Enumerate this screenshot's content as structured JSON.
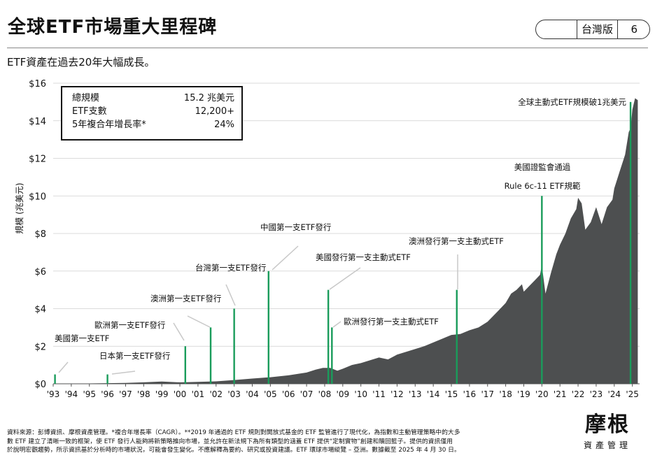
{
  "header": {
    "title": "全球ETF市場重大里程碑",
    "region_label": "台灣版",
    "page_number": "6"
  },
  "subtitle": "ETF資產在過去20年大幅成長。",
  "stats_box": {
    "rows": [
      {
        "label": "總規模",
        "value": "15.2 兆美元"
      },
      {
        "label": "ETF支數",
        "value": "12,200+"
      },
      {
        "label": "5年複合年增長率*",
        "value": "24%"
      }
    ]
  },
  "chart_data": {
    "type": "area",
    "ylabel": "規模 (兆美元)",
    "ylim": [
      0,
      16
    ],
    "xlim": [
      1993,
      2025.4
    ],
    "y_ticks": [
      0,
      2,
      4,
      6,
      8,
      10,
      12,
      14,
      16
    ],
    "y_tick_labels": [
      "$0",
      "$2",
      "$4",
      "$6",
      "$8",
      "$10",
      "$12",
      "$14",
      "$16"
    ],
    "x_ticks": [
      1993,
      1994,
      1995,
      1996,
      1997,
      1998,
      1999,
      2000,
      2001,
      2002,
      2003,
      2004,
      2005,
      2006,
      2007,
      2008,
      2009,
      2010,
      2011,
      2012,
      2013,
      2014,
      2015,
      2016,
      2017,
      2018,
      2019,
      2020,
      2021,
      2022,
      2023,
      2024,
      2025
    ],
    "x_tick_labels": [
      "'93",
      "'94",
      "'95",
      "'96",
      "'97",
      "'98",
      "'99",
      "'00",
      "'01",
      "'02",
      "'03",
      "'04",
      "'05",
      "'06",
      "'07",
      "'08",
      "'09",
      "'10",
      "'11",
      "'12",
      "'13",
      "'14",
      "'15",
      "'16",
      "'17",
      "'18",
      "'19",
      "'20",
      "'21",
      "'22",
      "'23",
      "'24",
      "'25"
    ],
    "grid": "horizontal",
    "colors": {
      "area": "#4d4f50",
      "milestone": "#1a9c5b",
      "grid": "#cfcfcf"
    },
    "series": [
      {
        "x": [
          1993,
          1995,
          1997,
          1998,
          1999,
          2000,
          2000.5,
          2001,
          2002,
          2003,
          2004,
          2005,
          2006,
          2007,
          2007.5,
          2007.9,
          2008.3,
          2008.7,
          2009,
          2009.5,
          2010,
          2010.5,
          2011,
          2011.5,
          2012,
          2012.5,
          2013,
          2013.5,
          2014,
          2014.5,
          2015,
          2015.5,
          2016,
          2016.5,
          2017,
          2017.3,
          2017.6,
          2018,
          2018.3,
          2018.6,
          2018.9,
          2019,
          2019.3,
          2019.6,
          2019.9,
          2020,
          2020.2,
          2020.5,
          2020.8,
          2021,
          2021.3,
          2021.6,
          2021.9,
          2022,
          2022.2,
          2022.4,
          2022.7,
          2023,
          2023.3,
          2023.6,
          2023.9,
          2024,
          2024.3,
          2024.6,
          2024.8,
          2024.9,
          2025,
          2025.15,
          2025.3
        ],
        "y": [
          0.01,
          0.02,
          0.05,
          0.08,
          0.12,
          0.08,
          0.09,
          0.1,
          0.13,
          0.2,
          0.28,
          0.35,
          0.45,
          0.6,
          0.75,
          0.85,
          0.85,
          0.7,
          0.8,
          1.0,
          1.1,
          1.25,
          1.4,
          1.3,
          1.55,
          1.7,
          1.85,
          2.0,
          2.2,
          2.4,
          2.6,
          2.65,
          2.85,
          3.0,
          3.3,
          3.6,
          3.9,
          4.3,
          4.8,
          5.0,
          5.3,
          4.9,
          5.2,
          5.5,
          5.8,
          6.3,
          4.8,
          5.9,
          6.9,
          7.4,
          8.0,
          8.8,
          9.3,
          9.9,
          9.6,
          8.2,
          8.6,
          9.4,
          8.5,
          9.4,
          9.8,
          10.4,
          11.3,
          12.2,
          13.4,
          13.6,
          14.6,
          15.2,
          15.1
        ]
      }
    ],
    "annotations": [
      {
        "text": "美國第一支ETF",
        "x": 1993.1,
        "value": 0.5
      },
      {
        "text": "日本第一支ETF發行",
        "x": 1996.0,
        "value": 0.5
      },
      {
        "text": "歐洲第一支ETF發行",
        "x": 2000.3,
        "value": 2.0
      },
      {
        "text": "澳洲第一支ETF發行",
        "x": 2001.7,
        "value": 3.0
      },
      {
        "text": "台灣第一支ETF發行",
        "x": 2003.0,
        "value": 4.0
      },
      {
        "text": "中國第一支ETF發行",
        "x": 2004.9,
        "value": 6.0
      },
      {
        "text": "美國發行第一支主動式ETF",
        "x": 2008.2,
        "value": 5.0
      },
      {
        "text": "歐洲發行第一支主動式ETF",
        "x": 2008.4,
        "value": 3.0
      },
      {
        "text": "澳洲發行第一支主動式ETF",
        "x": 2015.3,
        "value": 5.0
      },
      {
        "text": "美國證監會通過",
        "text2": "Rule 6c-11 ETF規範",
        "x": 2020.0,
        "value": 10.0
      },
      {
        "text": "全球主動式ETF規模破1兆美元",
        "x": 2024.9,
        "value": 15.0
      }
    ]
  },
  "footer": {
    "line1": "資料來源：彭博資訊、摩根資產管理。*複合年增長率（CAGR）。**2019 年通過的 ETF 規則對開放式基金的 ETF 監管進行了現代化，為指數和主動管理策略中的大多",
    "line2": "數 ETF 建立了清晰一致的框架，使 ETF 發行人能夠將新策略推向市場，並允許在新法規下為所有類型的涵蓋 ETF 提供“定制實物”創建和贖回籃子。提供的資訊僅用",
    "line3": "於說明宏觀趨勢，所示資訊基於分析時的市場狀況，可能會發生變化。不應解釋為要約、研究或投資建議。ETF 環球市場縱覽 – 亞洲。數據截至 2025 年 4 月 30 日。"
  },
  "logo": {
    "brand": "摩根",
    "sub": "資產管理"
  }
}
